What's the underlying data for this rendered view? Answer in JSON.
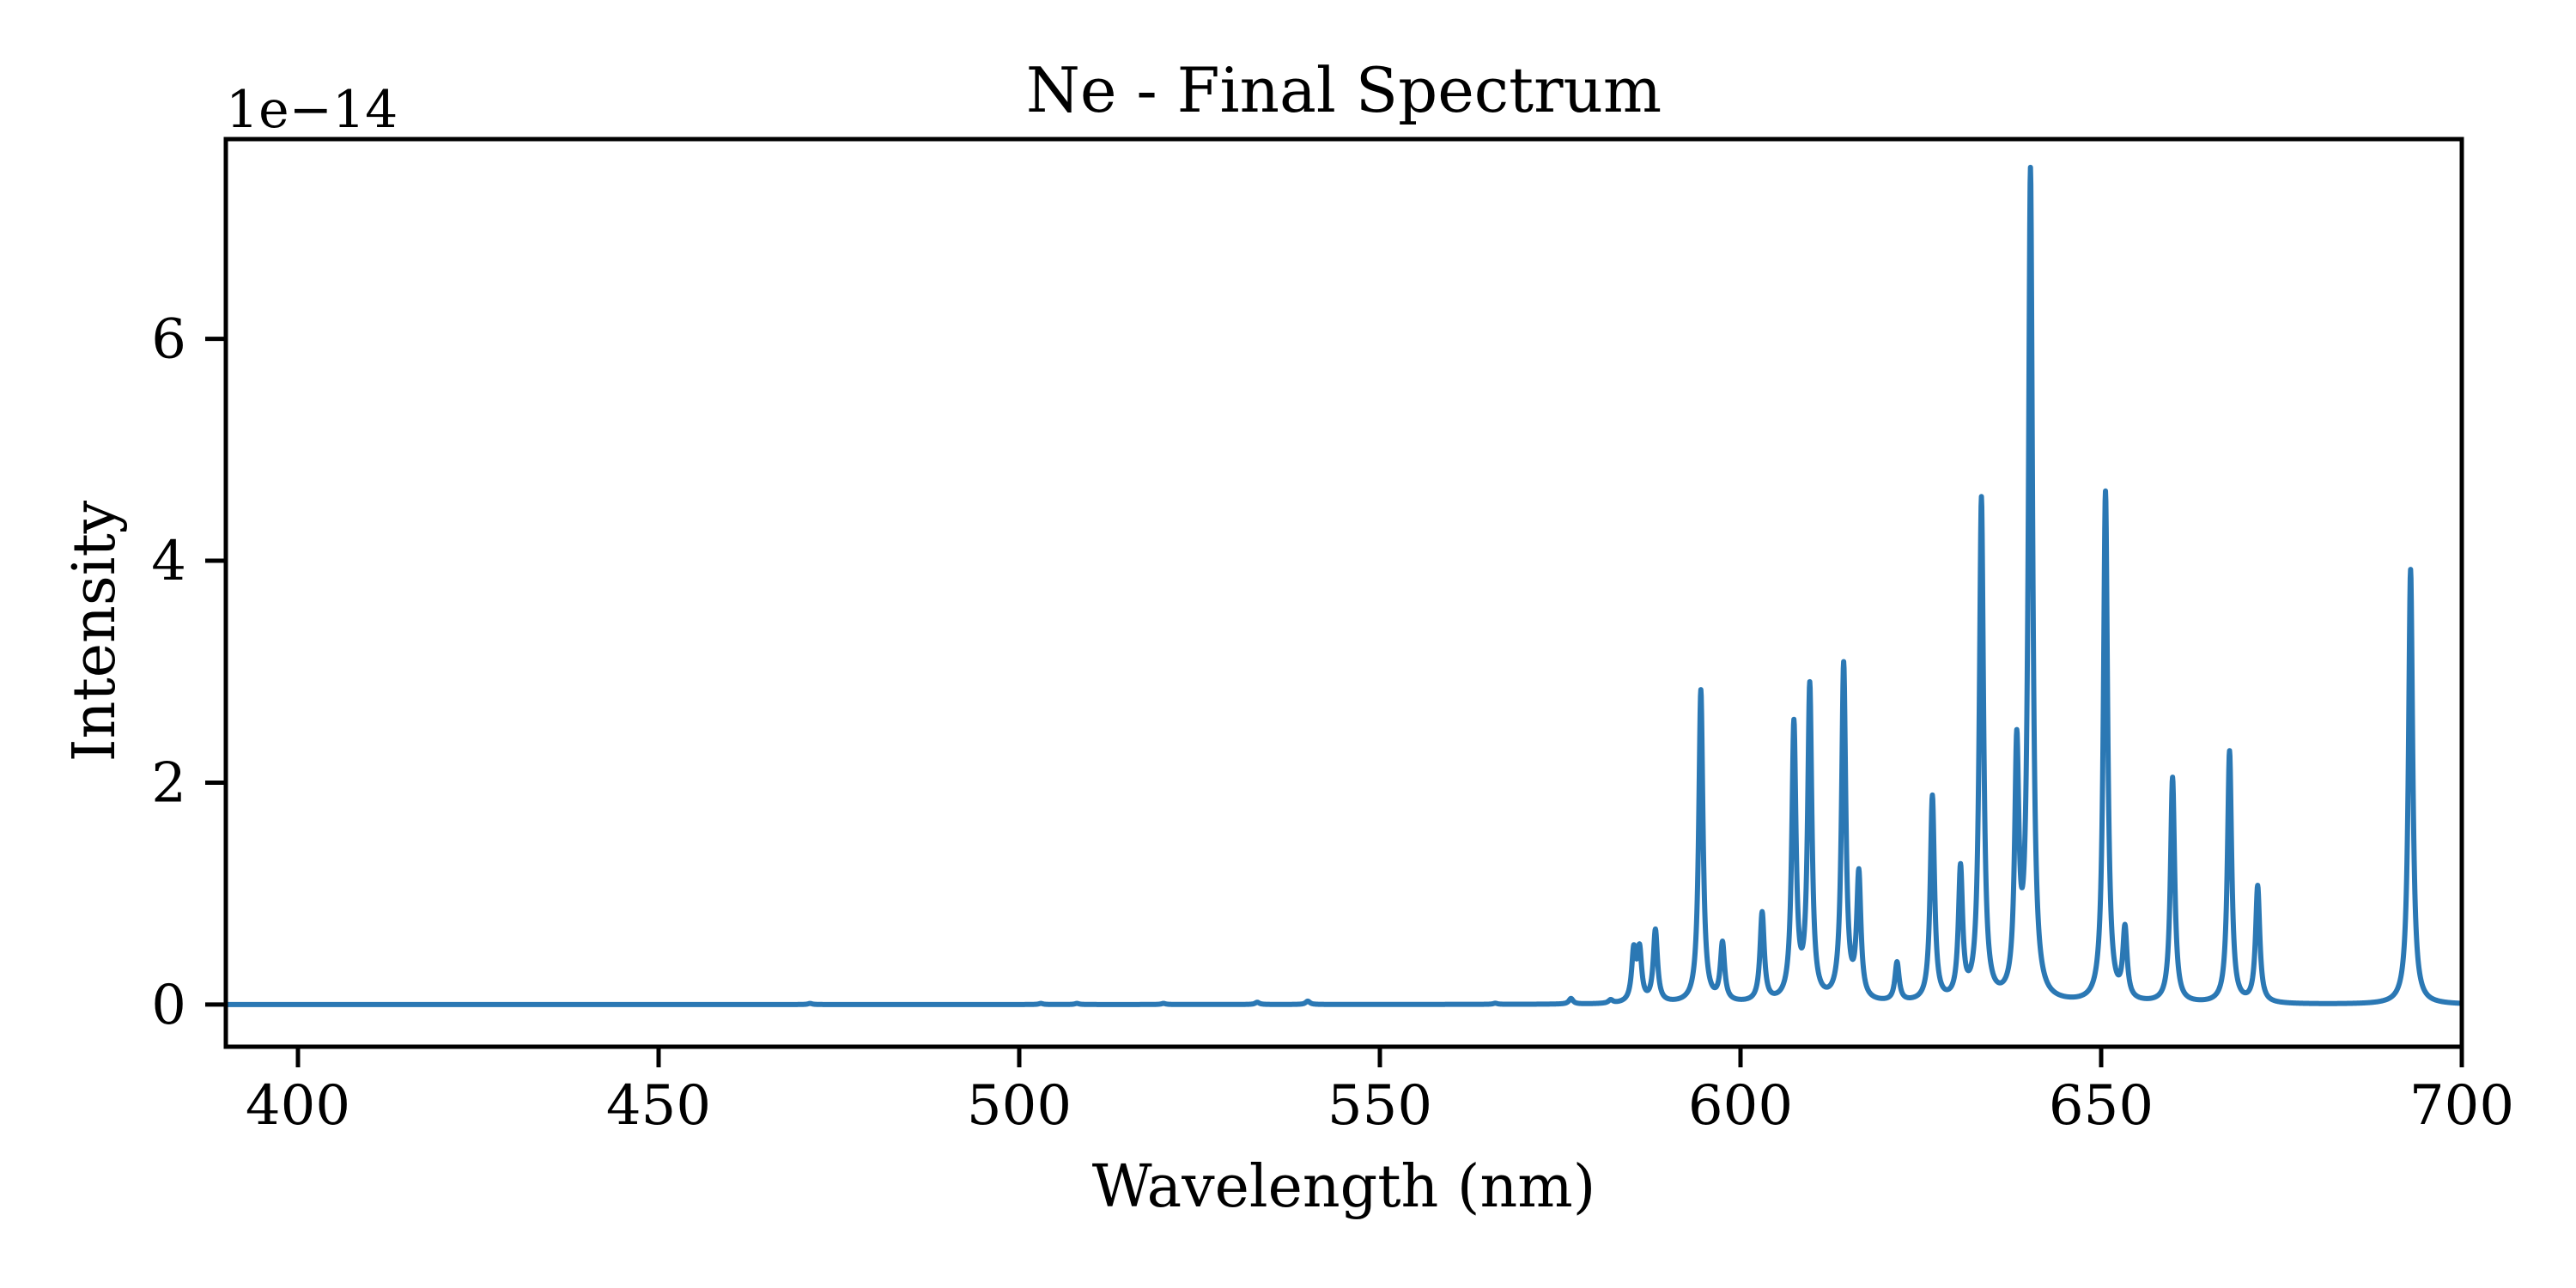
{
  "chart_data": {
    "type": "line",
    "title": "Ne - Final Spectrum",
    "xlabel": "Wavelength (nm)",
    "ylabel": "Intensity",
    "y_offset_text": "1e−14",
    "xlim": [
      390,
      700
    ],
    "ylim": [
      -0.38,
      7.8
    ],
    "x_ticks": [
      400,
      450,
      500,
      550,
      600,
      650,
      700
    ],
    "x_tick_labels": [
      "400",
      "450",
      "500",
      "550",
      "600",
      "650",
      "700"
    ],
    "y_ticks": [
      0,
      2,
      4,
      6
    ],
    "y_tick_labels": [
      "0",
      "2",
      "4",
      "6"
    ],
    "grid": false,
    "series": [
      {
        "color": "#2b78b4",
        "peaks": [
          {
            "x": 471.0,
            "y": 0.01
          },
          {
            "x": 503.0,
            "y": 0.01
          },
          {
            "x": 508.0,
            "y": 0.01
          },
          {
            "x": 520.0,
            "y": 0.01
          },
          {
            "x": 533.0,
            "y": 0.02
          },
          {
            "x": 540.0,
            "y": 0.03
          },
          {
            "x": 566.0,
            "y": 0.01
          },
          {
            "x": 576.5,
            "y": 0.05
          },
          {
            "x": 582.0,
            "y": 0.03
          },
          {
            "x": 585.2,
            "y": 0.45
          },
          {
            "x": 586.0,
            "y": 0.45
          },
          {
            "x": 588.2,
            "y": 0.65
          },
          {
            "x": 594.5,
            "y": 2.82
          },
          {
            "x": 597.5,
            "y": 0.52
          },
          {
            "x": 603.0,
            "y": 0.8
          },
          {
            "x": 607.4,
            "y": 2.48
          },
          {
            "x": 609.6,
            "y": 2.82
          },
          {
            "x": 614.3,
            "y": 3.03
          },
          {
            "x": 616.4,
            "y": 1.12
          },
          {
            "x": 621.7,
            "y": 0.35
          },
          {
            "x": 626.6,
            "y": 1.85
          },
          {
            "x": 630.5,
            "y": 1.17
          },
          {
            "x": 633.4,
            "y": 4.52
          },
          {
            "x": 638.3,
            "y": 2.2
          },
          {
            "x": 640.2,
            "y": 7.45
          },
          {
            "x": 650.6,
            "y": 4.6
          },
          {
            "x": 653.3,
            "y": 0.63
          },
          {
            "x": 659.9,
            "y": 2.03
          },
          {
            "x": 667.8,
            "y": 2.27
          },
          {
            "x": 671.7,
            "y": 1.05
          },
          {
            "x": 692.9,
            "y": 3.92
          }
        ]
      }
    ]
  }
}
